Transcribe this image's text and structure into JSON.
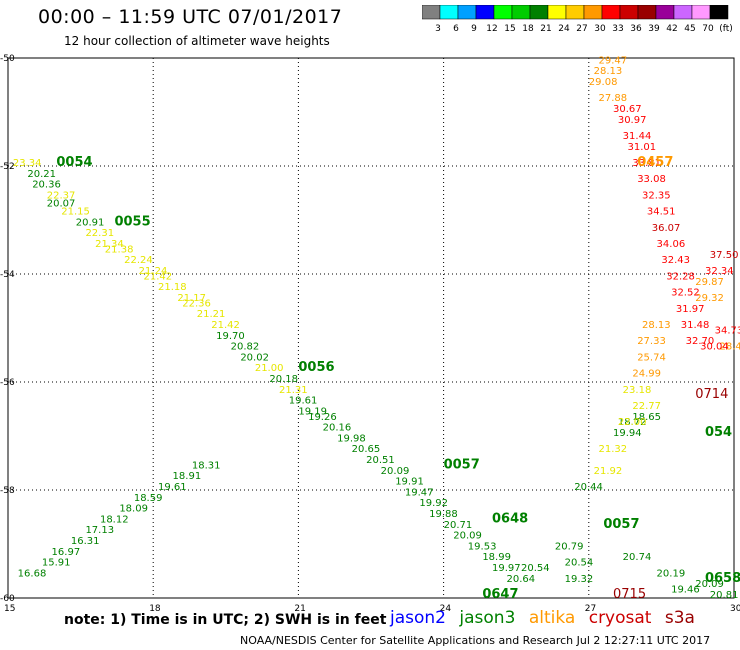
{
  "header": {
    "title": "00:00 – 11:59 UTC 07/01/2017",
    "subtitle": "12 hour collection of altimeter wave heights"
  },
  "legend": {
    "colors": [
      "#808080",
      "#00ffff",
      "#00a0ff",
      "#0000ff",
      "#00ff00",
      "#00cc00",
      "#008000",
      "#ffff00",
      "#ffcc00",
      "#ff9900",
      "#ff0000",
      "#cc0000",
      "#990000",
      "#990099",
      "#cc66ff",
      "#ff99ff",
      "#000000"
    ],
    "labels": [
      "3",
      "6",
      "9",
      "12",
      "15",
      "18",
      "21",
      "24",
      "27",
      "30",
      "33",
      "36",
      "39",
      "42",
      "45",
      "70",
      "(ft)"
    ]
  },
  "note": "note:  1) Time is in UTC;  2) SWH is in feet",
  "satellites": [
    {
      "name": "jason2",
      "color": "#0000ff"
    },
    {
      "name": "jason3",
      "color": "#008000"
    },
    {
      "name": "altika",
      "color": "#ff9900"
    },
    {
      "name": "cryosat",
      "color": "#cc0000"
    },
    {
      "name": "s3a",
      "color": "#990000"
    }
  ],
  "footer": "NOAA/NESDIS Center for Satellite Applications and Research      Jul  2 12:27:11 UTC 2017",
  "chart_data": {
    "type": "scatter",
    "title": "12 hour collection of altimeter wave heights",
    "xlim": [
      15,
      30
    ],
    "ylim": [
      -60,
      -50
    ],
    "x_ticks": [
      15,
      18,
      21,
      24,
      27,
      30
    ],
    "y_ticks": [
      -50,
      -52,
      -54,
      -56,
      -58,
      -60
    ],
    "x_tick_labels": [
      "15",
      "18",
      "21",
      "24",
      "27",
      "30"
    ],
    "y_tick_labels": [
      "-50",
      "-52",
      "-54",
      "-56",
      "-58",
      "-60"
    ],
    "grid": true,
    "series": [
      {
        "name": "jason3",
        "points": [
          {
            "x": 15.1,
            "y": -52.0,
            "v": "23.34"
          },
          {
            "x": 15.4,
            "y": -52.2,
            "v": "20.21"
          },
          {
            "x": 15.5,
            "y": -52.4,
            "v": "20.36"
          },
          {
            "x": 15.8,
            "y": -52.6,
            "v": "22.37"
          },
          {
            "x": 15.8,
            "y": -52.75,
            "v": "20.07"
          },
          {
            "x": 16.1,
            "y": -52.9,
            "v": "21.15"
          },
          {
            "x": 16.4,
            "y": -53.1,
            "v": "20.91"
          },
          {
            "x": 16.6,
            "y": -53.3,
            "v": "22.31"
          },
          {
            "x": 16.8,
            "y": -53.5,
            "v": "21.34"
          },
          {
            "x": 17.0,
            "y": -53.6,
            "v": "21.38"
          },
          {
            "x": 17.4,
            "y": -53.8,
            "v": "22.24"
          },
          {
            "x": 17.7,
            "y": -54.0,
            "v": "21.24"
          },
          {
            "x": 17.8,
            "y": -54.1,
            "v": "21.42"
          },
          {
            "x": 18.1,
            "y": -54.3,
            "v": "21.18"
          },
          {
            "x": 18.5,
            "y": -54.5,
            "v": "21.17"
          },
          {
            "x": 18.6,
            "y": -54.6,
            "v": "22.36"
          },
          {
            "x": 18.9,
            "y": -54.8,
            "v": "21.21"
          },
          {
            "x": 19.2,
            "y": -55.0,
            "v": "21.42"
          },
          {
            "x": 19.3,
            "y": -55.2,
            "v": "19.70"
          },
          {
            "x": 19.6,
            "y": -55.4,
            "v": "20.82"
          },
          {
            "x": 19.8,
            "y": -55.6,
            "v": "20.02"
          },
          {
            "x": 20.1,
            "y": -55.8,
            "v": "21.00"
          },
          {
            "x": 20.4,
            "y": -56.0,
            "v": "20.18"
          },
          {
            "x": 20.6,
            "y": -56.2,
            "v": "21.31"
          },
          {
            "x": 20.8,
            "y": -56.4,
            "v": "19.61"
          },
          {
            "x": 21.0,
            "y": -56.6,
            "v": "19.19"
          },
          {
            "x": 21.2,
            "y": -56.7,
            "v": "19.26"
          },
          {
            "x": 21.5,
            "y": -56.9,
            "v": "20.16"
          },
          {
            "x": 21.8,
            "y": -57.1,
            "v": "19.98"
          },
          {
            "x": 22.1,
            "y": -57.3,
            "v": "20.65"
          },
          {
            "x": 22.4,
            "y": -57.5,
            "v": "20.51"
          },
          {
            "x": 22.7,
            "y": -57.7,
            "v": "20.09"
          },
          {
            "x": 23.0,
            "y": -57.9,
            "v": "19.91"
          },
          {
            "x": 23.2,
            "y": -58.1,
            "v": "19.47"
          },
          {
            "x": 23.5,
            "y": -58.3,
            "v": "19.92"
          },
          {
            "x": 23.7,
            "y": -58.5,
            "v": "19.88"
          },
          {
            "x": 24.0,
            "y": -58.7,
            "v": "20.71"
          },
          {
            "x": 24.2,
            "y": -58.9,
            "v": "20.09"
          },
          {
            "x": 24.5,
            "y": -59.1,
            "v": "19.53"
          },
          {
            "x": 24.8,
            "y": -59.3,
            "v": "18.99"
          },
          {
            "x": 25.0,
            "y": -59.5,
            "v": "19.97"
          },
          {
            "x": 25.3,
            "y": -59.7,
            "v": "20.64"
          },
          {
            "x": 25.6,
            "y": -59.5,
            "v": "20.54"
          },
          {
            "x": 26.3,
            "y": -59.1,
            "v": "20.79"
          },
          {
            "x": 26.7,
            "y": -58.0,
            "v": "20.44"
          },
          {
            "x": 27.1,
            "y": -57.7,
            "v": "21.92"
          },
          {
            "x": 27.2,
            "y": -57.3,
            "v": "21.32"
          },
          {
            "x": 27.5,
            "y": -57.0,
            "v": "19.94"
          },
          {
            "x": 27.6,
            "y": -56.8,
            "v": "18.72"
          },
          {
            "x": 27.9,
            "y": -56.7,
            "v": "18.65"
          },
          {
            "x": 15.2,
            "y": -59.6,
            "v": "16.68"
          },
          {
            "x": 15.7,
            "y": -59.4,
            "v": "15.91"
          },
          {
            "x": 15.9,
            "y": -59.2,
            "v": "16.97"
          },
          {
            "x": 16.3,
            "y": -59.0,
            "v": "16.31"
          },
          {
            "x": 16.6,
            "y": -58.8,
            "v": "17.13"
          },
          {
            "x": 16.9,
            "y": -58.6,
            "v": "18.12"
          },
          {
            "x": 17.3,
            "y": -58.4,
            "v": "18.09"
          },
          {
            "x": 17.6,
            "y": -58.2,
            "v": "18.59"
          },
          {
            "x": 18.1,
            "y": -58.0,
            "v": "19.61"
          },
          {
            "x": 18.4,
            "y": -57.8,
            "v": "18.91"
          },
          {
            "x": 18.8,
            "y": -57.6,
            "v": "18.31"
          },
          {
            "x": 26.5,
            "y": -59.7,
            "v": "19.32"
          },
          {
            "x": 26.5,
            "y": -59.4,
            "v": "20.54"
          },
          {
            "x": 27.7,
            "y": -59.3,
            "v": "20.74"
          },
          {
            "x": 28.4,
            "y": -59.6,
            "v": "20.19"
          },
          {
            "x": 28.7,
            "y": -59.9,
            "v": "19.46"
          },
          {
            "x": 29.2,
            "y": -59.8,
            "v": "20.09"
          },
          {
            "x": 29.5,
            "y": -60.0,
            "v": "20.81"
          }
        ]
      },
      {
        "name": "altika",
        "points": [
          {
            "x": 27.2,
            "y": -50.1,
            "v": "29.47"
          },
          {
            "x": 27.1,
            "y": -50.3,
            "v": "28.13"
          },
          {
            "x": 27.0,
            "y": -50.5,
            "v": "29.08"
          },
          {
            "x": 27.2,
            "y": -50.8,
            "v": "27.88"
          },
          {
            "x": 28.1,
            "y": -55.0,
            "v": "28.13"
          },
          {
            "x": 28.0,
            "y": -55.3,
            "v": "27.33"
          },
          {
            "x": 28.0,
            "y": -55.6,
            "v": "25.74"
          },
          {
            "x": 27.9,
            "y": -55.9,
            "v": "24.99"
          },
          {
            "x": 27.7,
            "y": -56.2,
            "v": "23.18"
          },
          {
            "x": 27.9,
            "y": -56.5,
            "v": "22.77"
          },
          {
            "x": 27.6,
            "y": -56.8,
            "v": "22.00"
          },
          {
            "x": 29.2,
            "y": -54.2,
            "v": "29.87"
          },
          {
            "x": 29.2,
            "y": -54.5,
            "v": "29.32"
          },
          {
            "x": 29.7,
            "y": -55.4,
            "v": "28.45"
          }
        ]
      },
      {
        "name": "cryosat",
        "points": [
          {
            "x": 27.5,
            "y": -51.0,
            "v": "30.67"
          },
          {
            "x": 27.6,
            "y": -51.2,
            "v": "30.97"
          },
          {
            "x": 27.7,
            "y": -51.5,
            "v": "31.44"
          },
          {
            "x": 27.8,
            "y": -51.7,
            "v": "31.01"
          },
          {
            "x": 27.9,
            "y": -52.0,
            "v": "33.81"
          },
          {
            "x": 28.0,
            "y": -52.3,
            "v": "33.08"
          },
          {
            "x": 28.1,
            "y": -52.6,
            "v": "32.35"
          },
          {
            "x": 28.2,
            "y": -52.9,
            "v": "34.51"
          },
          {
            "x": 28.3,
            "y": -53.2,
            "v": "36.07"
          },
          {
            "x": 28.4,
            "y": -53.5,
            "v": "34.06"
          },
          {
            "x": 28.5,
            "y": -53.8,
            "v": "32.43"
          },
          {
            "x": 28.6,
            "y": -54.1,
            "v": "32.28"
          },
          {
            "x": 28.7,
            "y": -54.4,
            "v": "32.52"
          },
          {
            "x": 28.8,
            "y": -54.7,
            "v": "31.97"
          },
          {
            "x": 28.9,
            "y": -55.0,
            "v": "31.48"
          },
          {
            "x": 29.0,
            "y": -55.3,
            "v": "32.70"
          },
          {
            "x": 29.4,
            "y": -54.0,
            "v": "32.34"
          },
          {
            "x": 29.5,
            "y": -53.7,
            "v": "37.50"
          },
          {
            "x": 29.6,
            "y": -55.1,
            "v": "34.73"
          },
          {
            "x": 29.3,
            "y": -55.4,
            "v": "30.04"
          }
        ]
      },
      {
        "name": "s3a",
        "points": [
          {
            "x": 27.5,
            "y": -60.0,
            "v": "0715"
          },
          {
            "x": 29.2,
            "y": -56.3,
            "v": "0714"
          }
        ]
      }
    ],
    "pass_labels": [
      {
        "x": 16.0,
        "y": -52.0,
        "v": "0054",
        "series": "jason3"
      },
      {
        "x": 17.2,
        "y": -53.1,
        "v": "0055",
        "series": "jason3"
      },
      {
        "x": 21.0,
        "y": -55.8,
        "v": "0056",
        "series": "jason3"
      },
      {
        "x": 24.0,
        "y": -57.6,
        "v": "0057",
        "series": "jason3"
      },
      {
        "x": 25.0,
        "y": -58.6,
        "v": "0648",
        "series": "jason3"
      },
      {
        "x": 27.3,
        "y": -58.7,
        "v": "0057",
        "series": "jason3"
      },
      {
        "x": 24.8,
        "y": -60.0,
        "v": "0647",
        "series": "jason3"
      },
      {
        "x": 29.4,
        "y": -59.7,
        "v": "0658",
        "series": "jason3"
      },
      {
        "x": 29.4,
        "y": -57.0,
        "v": "054",
        "series": "jason3"
      },
      {
        "x": 28.0,
        "y": -52.0,
        "v": "0457",
        "series": "altika"
      }
    ]
  }
}
